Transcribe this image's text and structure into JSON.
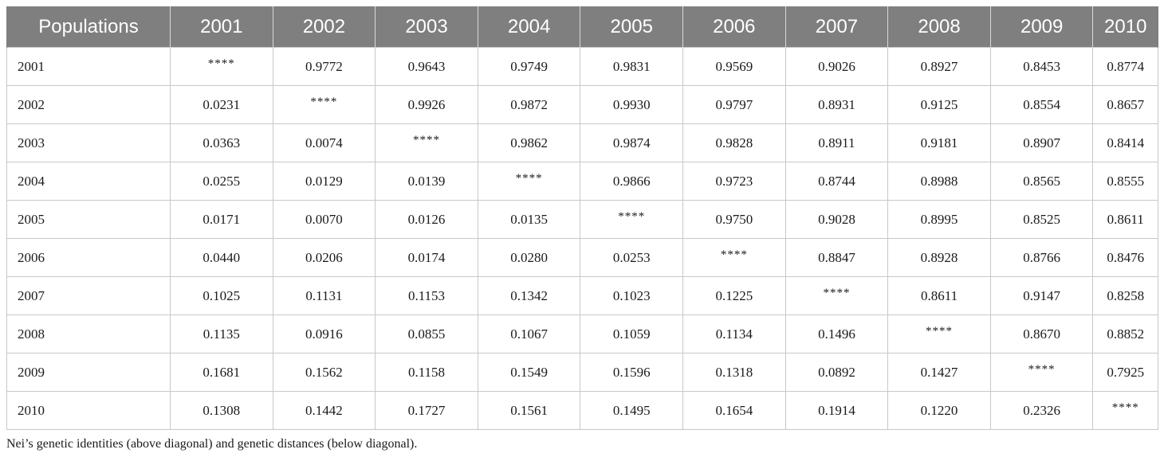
{
  "table": {
    "header": [
      "Populations",
      "2001",
      "2002",
      "2003",
      "2004",
      "2005",
      "2006",
      "2007",
      "2008",
      "2009",
      "2010"
    ],
    "diagonal_marker": "****",
    "rows": [
      {
        "label": "2001",
        "values": [
          "****",
          "0.9772",
          "0.9643",
          "0.9749",
          "0.9831",
          "0.9569",
          "0.9026",
          "0.8927",
          "0.8453",
          "0.8774"
        ]
      },
      {
        "label": "2002",
        "values": [
          "0.0231",
          "****",
          "0.9926",
          "0.9872",
          "0.9930",
          "0.9797",
          "0.8931",
          "0.9125",
          "0.8554",
          "0.8657"
        ]
      },
      {
        "label": "2003",
        "values": [
          "0.0363",
          "0.0074",
          "****",
          "0.9862",
          "0.9874",
          "0.9828",
          "0.8911",
          "0.9181",
          "0.8907",
          "0.8414"
        ]
      },
      {
        "label": "2004",
        "values": [
          "0.0255",
          "0.0129",
          "0.0139",
          "****",
          "0.9866",
          "0.9723",
          "0.8744",
          "0.8988",
          "0.8565",
          "0.8555"
        ]
      },
      {
        "label": "2005",
        "values": [
          "0.0171",
          "0.0070",
          "0.0126",
          "0.0135",
          "****",
          "0.9750",
          "0.9028",
          "0.8995",
          "0.8525",
          "0.8611"
        ]
      },
      {
        "label": "2006",
        "values": [
          "0.0440",
          "0.0206",
          "0.0174",
          "0.0280",
          "0.0253",
          "****",
          "0.8847",
          "0.8928",
          "0.8766",
          "0.8476"
        ]
      },
      {
        "label": "2007",
        "values": [
          "0.1025",
          "0.1131",
          "0.1153",
          "0.1342",
          "0.1023",
          "0.1225",
          "****",
          "0.8611",
          "0.9147",
          "0.8258"
        ]
      },
      {
        "label": "2008",
        "values": [
          "0.1135",
          "0.0916",
          "0.0855",
          "0.1067",
          "0.1059",
          "0.1134",
          "0.1496",
          "****",
          "0.8670",
          "0.8852"
        ]
      },
      {
        "label": "2009",
        "values": [
          "0.1681",
          "0.1562",
          "0.1158",
          "0.1549",
          "0.1596",
          "0.1318",
          "0.0892",
          "0.1427",
          "****",
          "0.7925"
        ]
      },
      {
        "label": "2010",
        "values": [
          "0.1308",
          "0.1442",
          "0.1727",
          "0.1561",
          "0.1495",
          "0.1654",
          "0.1914",
          "0.1220",
          "0.2326",
          "****"
        ]
      }
    ]
  },
  "footnote": "Nei’s genetic identities (above diagonal) and genetic distances (below diagonal).",
  "colors": {
    "header_bg": "#7f7f7f",
    "header_text": "#ffffff",
    "grid_line": "#c8c8c8"
  }
}
